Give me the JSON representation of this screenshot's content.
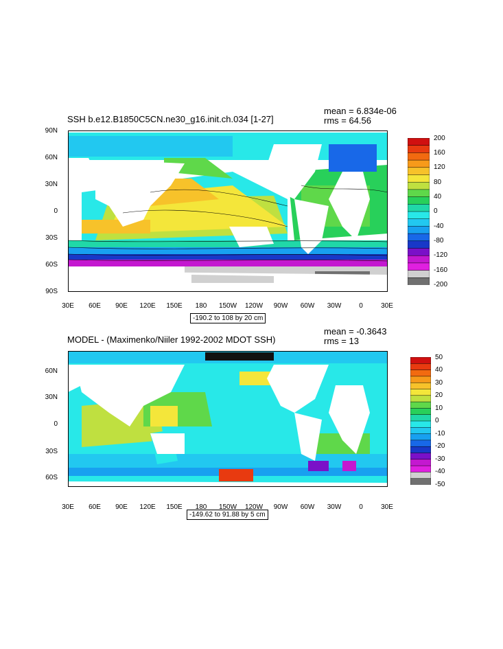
{
  "panel1": {
    "title": "SSH b.e12.B1850C5CN.ne30_g16.init.ch.034 [1-27]",
    "mean_label": "mean = 6.834e-06",
    "rms_label": "rms = 64.56",
    "contour_info": "-190.2 to 108 by 20 cm",
    "y_ticks": [
      "90N",
      "60N",
      "30N",
      "0",
      "30S",
      "60S",
      "90S"
    ],
    "x_ticks": [
      "30E",
      "60E",
      "90E",
      "120E",
      "150E",
      "180",
      "150W",
      "120W",
      "90W",
      "60W",
      "30W",
      "0",
      "30E"
    ],
    "colorbar": {
      "labels": [
        "200",
        "160",
        "120",
        "80",
        "40",
        "0",
        "-40",
        "-80",
        "-120",
        "-160",
        "-200"
      ],
      "colors": [
        "#d01010",
        "#e83a10",
        "#f26a10",
        "#f79a1a",
        "#f7c22a",
        "#f4e63a",
        "#bfe040",
        "#5fd84a",
        "#28d05a",
        "#20d8a8",
        "#28e8e8",
        "#22c8f0",
        "#18a0f0",
        "#1868e8",
        "#1838c8",
        "#7a10c8",
        "#c418d0",
        "#e020e0",
        "#d0d0d0",
        "#707070"
      ]
    }
  },
  "panel2": {
    "title": "MODEL - (Maximenko/Niiler 1992-2002 MDOT SSH)",
    "mean_label": "mean = -0.3643",
    "rms_label": "rms = 13",
    "contour_info": "-149.62 to 91.88 by 5 cm",
    "y_ticks": [
      "60N",
      "30N",
      "0",
      "30S",
      "60S"
    ],
    "x_ticks": [
      "30E",
      "60E",
      "90E",
      "120E",
      "150E",
      "180",
      "150W",
      "120W",
      "90W",
      "60W",
      "30W",
      "0",
      "30E"
    ],
    "colorbar": {
      "labels": [
        "50",
        "40",
        "30",
        "20",
        "10",
        "0",
        "-10",
        "-20",
        "-30",
        "-40",
        "-50"
      ],
      "colors": [
        "#d01010",
        "#e83a10",
        "#f26a10",
        "#f79a1a",
        "#f7c22a",
        "#f4e63a",
        "#bfe040",
        "#5fd84a",
        "#28d05a",
        "#20d8a8",
        "#28e8e8",
        "#22c8f0",
        "#18a0f0",
        "#1868e8",
        "#1838c8",
        "#7a10c8",
        "#c418d0",
        "#e020e0",
        "#d0d0d0",
        "#707070"
      ]
    }
  }
}
